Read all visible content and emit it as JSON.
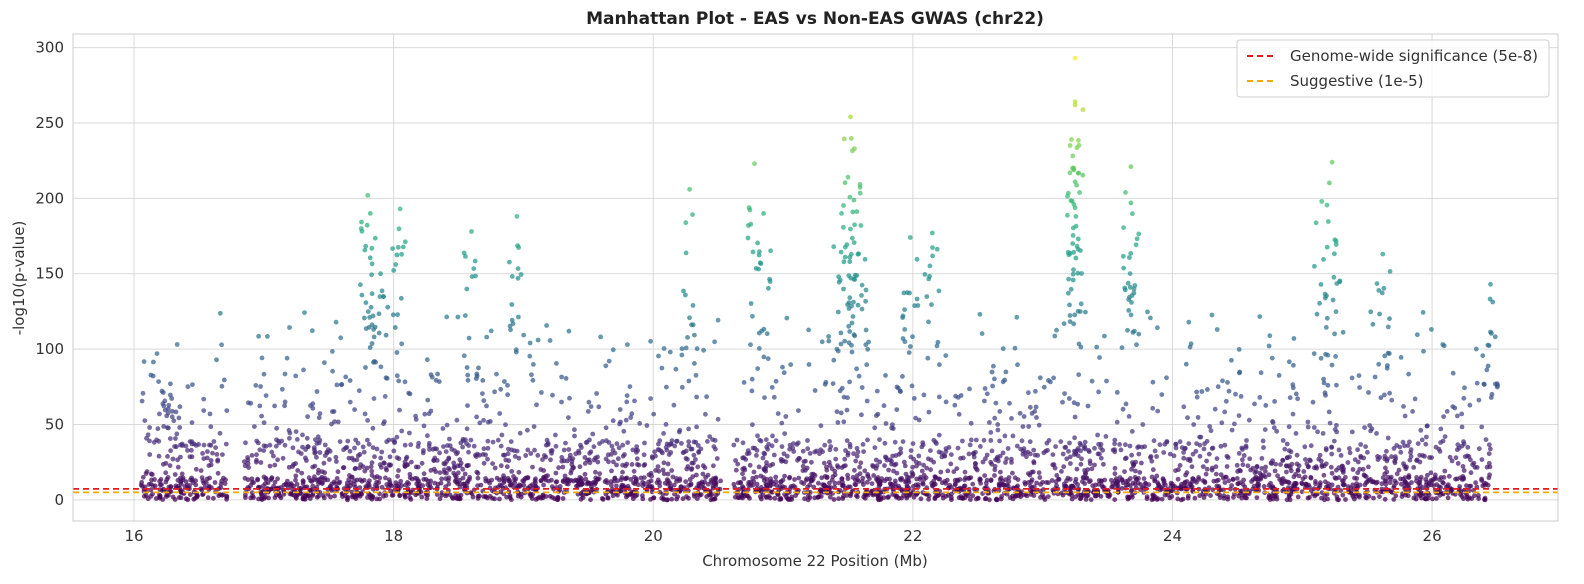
{
  "chart_data": {
    "type": "scatter",
    "title": "Manhattan Plot - EAS vs Non-EAS GWAS (chr22)",
    "xlabel": "Chromosome 22 Position (Mb)",
    "ylabel": "-log10(p-value)",
    "xlim": [
      15.53,
      26.97
    ],
    "ylim": [
      -14,
      309
    ],
    "x_ticks": [
      16,
      18,
      20,
      22,
      24,
      26
    ],
    "y_ticks": [
      0,
      50,
      100,
      150,
      200,
      250,
      300
    ],
    "grid": true,
    "legend_position": "top-right",
    "colormap": "viridis",
    "data_range": {
      "x_min": 16.05,
      "x_max": 26.45,
      "gaps": [
        [
          16.72,
          16.85
        ],
        [
          20.52,
          20.62
        ]
      ]
    },
    "thresholds": [
      {
        "name": "Genome-wide significance (5e-8)",
        "value": 7.3,
        "color": "#e41a1c",
        "style": "dashed"
      },
      {
        "name": "Suggestive (1e-5)",
        "value": 5,
        "color": "#f2a900",
        "style": "dashed"
      }
    ],
    "peaks": [
      {
        "x": 16.28,
        "y": 77
      },
      {
        "x": 17.8,
        "y": 202
      },
      {
        "x": 17.82,
        "y": 190
      },
      {
        "x": 17.9,
        "y": 150
      },
      {
        "x": 18.05,
        "y": 193
      },
      {
        "x": 18.6,
        "y": 178
      },
      {
        "x": 18.95,
        "y": 188
      },
      {
        "x": 20.28,
        "y": 206
      },
      {
        "x": 20.78,
        "y": 223
      },
      {
        "x": 20.85,
        "y": 190
      },
      {
        "x": 21.45,
        "y": 190
      },
      {
        "x": 21.5,
        "y": 214
      },
      {
        "x": 21.52,
        "y": 254
      },
      {
        "x": 21.55,
        "y": 233
      },
      {
        "x": 21.6,
        "y": 182
      },
      {
        "x": 21.98,
        "y": 174
      },
      {
        "x": 22.15,
        "y": 177
      },
      {
        "x": 23.25,
        "y": 293
      },
      {
        "x": 23.25,
        "y": 264
      },
      {
        "x": 23.25,
        "y": 262
      },
      {
        "x": 23.25,
        "y": 211
      },
      {
        "x": 23.68,
        "y": 221
      },
      {
        "x": 23.68,
        "y": 197
      },
      {
        "x": 25.15,
        "y": 198
      },
      {
        "x": 25.23,
        "y": 224
      },
      {
        "x": 25.62,
        "y": 163
      },
      {
        "x": 26.45,
        "y": 143
      }
    ]
  }
}
